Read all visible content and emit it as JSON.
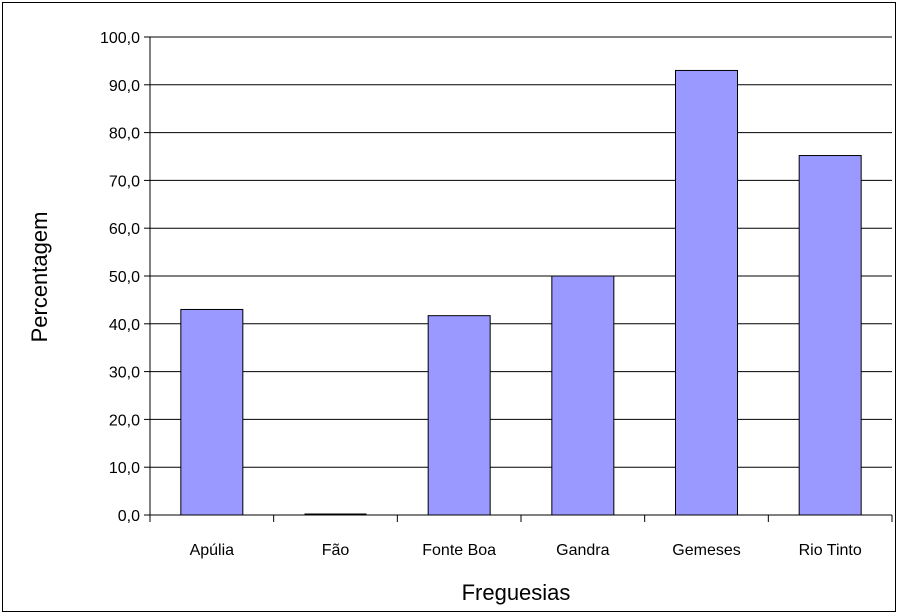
{
  "chart_data": {
    "type": "bar",
    "title": "",
    "xlabel": "Freguesias",
    "ylabel": "Percentagem",
    "categories": [
      "Apúlia",
      "Fão",
      "Fonte Boa",
      "Gandra",
      "Gemeses",
      "Rio Tinto"
    ],
    "values": [
      43.0,
      0.0,
      41.7,
      50.0,
      93.0,
      75.2
    ],
    "ylim": [
      0,
      100
    ],
    "yticks": [
      "0,0",
      "10,0",
      "20,0",
      "30,0",
      "40,0",
      "50,0",
      "60,0",
      "70,0",
      "80,0",
      "90,0",
      "100,0"
    ],
    "grid": true,
    "legend": "none",
    "bar_color": "#9999ff",
    "bar_edge_color": "#000000",
    "grid_color": "#000000"
  }
}
